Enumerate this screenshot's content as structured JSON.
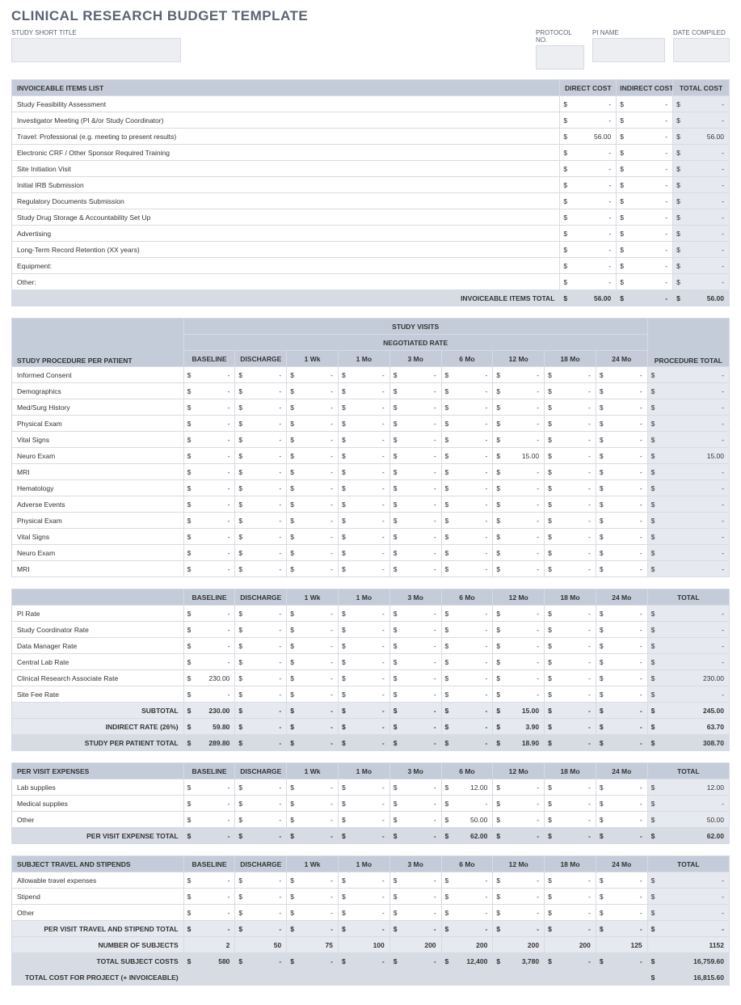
{
  "title": "CLINICAL RESEARCH BUDGET TEMPLATE",
  "meta": {
    "study_short_title": "STUDY SHORT TITLE",
    "protocol_no": "PROTOCOL NO.",
    "pi_name": "PI NAME",
    "date_compiled": "DATE COMPILED"
  },
  "invoiceable": {
    "header": "INVOICEABLE ITEMS LIST",
    "cols": {
      "direct": "DIRECT COST",
      "indirect": "INDIRECT COST",
      "total": "TOTAL COST"
    },
    "items": [
      {
        "name": "Study Feasibility Assessment",
        "d": "-",
        "i": "-",
        "t": "-"
      },
      {
        "name": "Investigator Meeting (PI &/or Study Coordinator)",
        "d": "-",
        "i": "-",
        "t": "-"
      },
      {
        "name": "Travel: Professional (e.g. meeting to present results)",
        "d": "56.00",
        "i": "-",
        "t": "56.00"
      },
      {
        "name": "Electronic CRF / Other Sponsor Required Training",
        "d": "-",
        "i": "-",
        "t": "-"
      },
      {
        "name": "Site Initiation Visit",
        "d": "-",
        "i": "-",
        "t": "-"
      },
      {
        "name": "Initial IRB Submission",
        "d": "-",
        "i": "-",
        "t": "-"
      },
      {
        "name": "Regulatory Documents Submission",
        "d": "-",
        "i": "-",
        "t": "-"
      },
      {
        "name": "Study Drug Storage & Accountability Set Up",
        "d": "-",
        "i": "-",
        "t": "-"
      },
      {
        "name": "Advertising",
        "d": "-",
        "i": "-",
        "t": "-"
      },
      {
        "name": "Long-Term Record Retention (XX years)",
        "d": "-",
        "i": "-",
        "t": "-"
      },
      {
        "name": "Equipment:",
        "d": "-",
        "i": "-",
        "t": "-"
      },
      {
        "name": "Other:",
        "d": "-",
        "i": "-",
        "t": "-"
      }
    ],
    "total_label": "INVOICEABLE ITEMS TOTAL",
    "totals": {
      "d": "56.00",
      "i": "-",
      "t": "56.00"
    }
  },
  "visits": {
    "top1": "STUDY VISITS",
    "top2": "NEGOTIATED RATE",
    "row_header": "STUDY PROCEDURE PER PATIENT",
    "cols": [
      "BASELINE",
      "DISCHARGE",
      "1 Wk",
      "1 Mo",
      "3 Mo",
      "6 Mo",
      "12 Mo",
      "18 Mo",
      "24 Mo"
    ],
    "total_col": "PROCEDURE TOTAL",
    "procs": [
      {
        "name": "Informed Consent",
        "v": [
          "-",
          "-",
          "-",
          "-",
          "-",
          "-",
          "-",
          "-",
          "-"
        ],
        "t": "-"
      },
      {
        "name": "Demographics",
        "v": [
          "-",
          "-",
          "-",
          "-",
          "-",
          "-",
          "-",
          "-",
          "-"
        ],
        "t": "-"
      },
      {
        "name": "Med/Surg History",
        "v": [
          "-",
          "-",
          "-",
          "-",
          "-",
          "-",
          "-",
          "-",
          "-"
        ],
        "t": "-"
      },
      {
        "name": "Physical Exam",
        "v": [
          "-",
          "-",
          "-",
          "-",
          "-",
          "-",
          "-",
          "-",
          "-"
        ],
        "t": "-"
      },
      {
        "name": "Vital Signs",
        "v": [
          "-",
          "-",
          "-",
          "-",
          "-",
          "-",
          "-",
          "-",
          "-"
        ],
        "t": "-"
      },
      {
        "name": "Neuro Exam",
        "v": [
          "-",
          "-",
          "-",
          "-",
          "-",
          "-",
          "15.00",
          "-",
          "-"
        ],
        "t": "15.00"
      },
      {
        "name": "MRI",
        "v": [
          "-",
          "-",
          "-",
          "-",
          "-",
          "-",
          "-",
          "-",
          "-"
        ],
        "t": "-"
      },
      {
        "name": "Hematology",
        "v": [
          "-",
          "-",
          "-",
          "-",
          "-",
          "-",
          "-",
          "-",
          "-"
        ],
        "t": "-"
      },
      {
        "name": "Adverse Events",
        "v": [
          "-",
          "-",
          "-",
          "-",
          "-",
          "-",
          "-",
          "-",
          "-"
        ],
        "t": "-"
      },
      {
        "name": "Physical Exam",
        "v": [
          "-",
          "-",
          "-",
          "-",
          "-",
          "-",
          "-",
          "-",
          "-"
        ],
        "t": "-"
      },
      {
        "name": "Vital Signs",
        "v": [
          "-",
          "-",
          "-",
          "-",
          "-",
          "-",
          "-",
          "-",
          "-"
        ],
        "t": "-"
      },
      {
        "name": "Neuro Exam",
        "v": [
          "-",
          "-",
          "-",
          "-",
          "-",
          "-",
          "-",
          "-",
          "-"
        ],
        "t": "-"
      },
      {
        "name": "MRI",
        "v": [
          "-",
          "-",
          "-",
          "-",
          "-",
          "-",
          "-",
          "-",
          "-"
        ],
        "t": "-"
      }
    ]
  },
  "rates": {
    "cols": [
      "BASELINE",
      "DISCHARGE",
      "1 Wk",
      "1 Mo",
      "3 Mo",
      "6 Mo",
      "12 Mo",
      "18 Mo",
      "24 Mo"
    ],
    "total_col": "TOTAL",
    "rows": [
      {
        "name": "PI Rate",
        "v": [
          "-",
          "-",
          "-",
          "-",
          "-",
          "-",
          "-",
          "-",
          "-"
        ],
        "t": "-"
      },
      {
        "name": "Study Coordinator Rate",
        "v": [
          "-",
          "-",
          "-",
          "-",
          "-",
          "-",
          "-",
          "-",
          "-"
        ],
        "t": "-"
      },
      {
        "name": "Data Manager Rate",
        "v": [
          "-",
          "-",
          "-",
          "-",
          "-",
          "-",
          "-",
          "-",
          "-"
        ],
        "t": "-"
      },
      {
        "name": "Central Lab Rate",
        "v": [
          "-",
          "-",
          "-",
          "-",
          "-",
          "-",
          "-",
          "-",
          "-"
        ],
        "t": "-"
      },
      {
        "name": "Clinical Research Associate Rate",
        "v": [
          "230.00",
          "-",
          "-",
          "-",
          "-",
          "-",
          "-",
          "-",
          "-"
        ],
        "t": "230.00"
      },
      {
        "name": "Site Fee Rate",
        "v": [
          "-",
          "-",
          "-",
          "-",
          "-",
          "-",
          "-",
          "-",
          "-"
        ],
        "t": "-"
      }
    ],
    "subtotal": {
      "label": "SUBTOTAL",
      "v": [
        "230.00",
        "-",
        "-",
        "-",
        "-",
        "-",
        "15.00",
        "-",
        "-"
      ],
      "t": "245.00"
    },
    "indirect": {
      "label": "INDIRECT RATE (26%)",
      "v": [
        "59.80",
        "-",
        "-",
        "-",
        "-",
        "-",
        "3.90",
        "-",
        "-"
      ],
      "t": "63.70"
    },
    "grand": {
      "label": "STUDY PER PATIENT TOTAL",
      "v": [
        "289.80",
        "-",
        "-",
        "-",
        "-",
        "-",
        "18.90",
        "-",
        "-"
      ],
      "t": "308.70"
    }
  },
  "pervisit": {
    "header": "PER VISIT EXPENSES",
    "cols": [
      "BASELINE",
      "DISCHARGE",
      "1 Wk",
      "1 Mo",
      "3 Mo",
      "6 Mo",
      "12 Mo",
      "18 Mo",
      "24 Mo"
    ],
    "total_col": "TOTAL",
    "rows": [
      {
        "name": "Lab supplies",
        "v": [
          "-",
          "-",
          "-",
          "-",
          "-",
          "12.00",
          "-",
          "-",
          "-"
        ],
        "t": "12.00"
      },
      {
        "name": "Medical supplies",
        "v": [
          "-",
          "-",
          "-",
          "-",
          "-",
          "-",
          "-",
          "-",
          "-"
        ],
        "t": "-"
      },
      {
        "name": "Other",
        "v": [
          "-",
          "-",
          "-",
          "-",
          "-",
          "50.00",
          "-",
          "-",
          "-"
        ],
        "t": "50.00"
      }
    ],
    "grand": {
      "label": "PER VISIT EXPENSE TOTAL",
      "v": [
        "-",
        "-",
        "-",
        "-",
        "-",
        "62.00",
        "-",
        "-",
        "-"
      ],
      "t": "62.00"
    }
  },
  "travel": {
    "header": "SUBJECT TRAVEL AND STIPENDS",
    "cols": [
      "BASELINE",
      "DISCHARGE",
      "1 Wk",
      "1 Mo",
      "3 Mo",
      "6 Mo",
      "12 Mo",
      "18 Mo",
      "24 Mo"
    ],
    "total_col": "TOTAL",
    "rows": [
      {
        "name": "Allowable travel expenses",
        "v": [
          "-",
          "-",
          "-",
          "-",
          "-",
          "-",
          "-",
          "-",
          "-"
        ],
        "t": "-"
      },
      {
        "name": "Stipend",
        "v": [
          "-",
          "-",
          "-",
          "-",
          "-",
          "-",
          "-",
          "-",
          "-"
        ],
        "t": "-"
      },
      {
        "name": "Other",
        "v": [
          "-",
          "-",
          "-",
          "-",
          "-",
          "-",
          "-",
          "-",
          "-"
        ],
        "t": "-"
      }
    ],
    "sub": {
      "label": "PER VISIT TRAVEL AND STIPEND TOTAL",
      "v": [
        "-",
        "-",
        "-",
        "-",
        "-",
        "-",
        "-",
        "-",
        "-"
      ],
      "t": "-"
    },
    "subjects": {
      "label": "NUMBER OF SUBJECTS",
      "v": [
        "2",
        "50",
        "75",
        "100",
        "200",
        "200",
        "200",
        "200",
        "125"
      ],
      "t": "1152"
    },
    "subjcost": {
      "label": "TOTAL SUBJECT COSTS",
      "v": [
        "580",
        "-",
        "-",
        "-",
        "-",
        "12,400",
        "3,780",
        "-",
        "-"
      ],
      "t": "16,759.60"
    },
    "project": {
      "label": "TOTAL COST FOR PROJECT (+ INVOICEABLE)",
      "t": "16,815.60"
    }
  },
  "currency": "$"
}
